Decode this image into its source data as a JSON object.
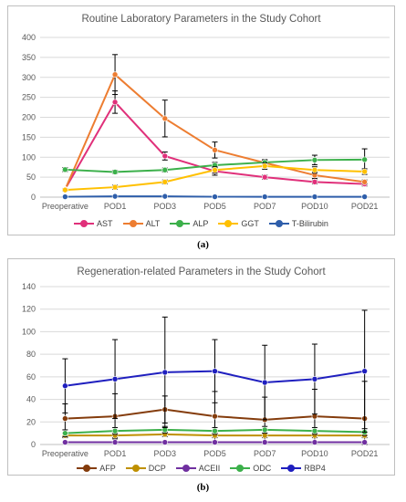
{
  "figure_a": {
    "caption": "(a)",
    "chart_data": {
      "type": "line",
      "title": "Routine Laboratory Parameters in the Study Cohort",
      "categories": [
        "Preoperative",
        "POD1",
        "POD3",
        "POD5",
        "POD7",
        "POD10",
        "POD21"
      ],
      "ylim": [
        0,
        400
      ],
      "yticks": [
        0,
        50,
        100,
        150,
        200,
        250,
        300,
        350,
        400
      ],
      "grid": true,
      "legend_position": "bottom",
      "series": [
        {
          "name": "AST",
          "color": "#e0307a",
          "values": [
            20,
            238,
            103,
            65,
            50,
            38,
            33
          ],
          "error": [
            0,
            28,
            10,
            10,
            5,
            5,
            5
          ]
        },
        {
          "name": "ALT",
          "color": "#ed7d31",
          "values": [
            19,
            307,
            197,
            118,
            86,
            55,
            38
          ],
          "error": [
            0,
            50,
            46,
            20,
            8,
            8,
            5
          ]
        },
        {
          "name": "ALP",
          "color": "#3cb04b",
          "values": [
            69,
            63,
            68,
            80,
            87,
            93,
            94
          ],
          "error": [
            5,
            4,
            5,
            7,
            5,
            12,
            27
          ]
        },
        {
          "name": "GGT",
          "color": "#ffc000",
          "values": [
            18,
            25,
            38,
            68,
            78,
            68,
            64
          ],
          "error": [
            3,
            5,
            5,
            8,
            8,
            8,
            7
          ]
        },
        {
          "name": "T-Bilirubin",
          "color": "#2e5eaa",
          "values": [
            1,
            2,
            2,
            1,
            1,
            1,
            1
          ],
          "error": [
            0,
            0,
            0,
            0,
            0,
            0,
            0
          ]
        }
      ]
    }
  },
  "figure_b": {
    "caption": "(b)",
    "chart_data": {
      "type": "line",
      "title": "Regeneration-related Parameters in the Study Cohort",
      "categories": [
        "Preoperative",
        "POD1",
        "POD3",
        "POD5",
        "POD7",
        "POD10",
        "POD21"
      ],
      "ylim": [
        0,
        140
      ],
      "yticks": [
        0,
        20,
        40,
        60,
        80,
        100,
        120,
        140
      ],
      "grid": true,
      "legend_position": "bottom",
      "series": [
        {
          "name": "AFP",
          "color": "#843c0c",
          "values": [
            23,
            25,
            31,
            25,
            22,
            25,
            23
          ],
          "error": [
            13,
            20,
            12,
            22,
            20,
            24,
            33
          ]
        },
        {
          "name": "DCP",
          "color": "#bf9000",
          "values": [
            8,
            8,
            9,
            8,
            8,
            8,
            8
          ],
          "error": [
            2,
            2,
            2,
            2,
            2,
            2,
            2
          ]
        },
        {
          "name": "ACEII",
          "color": "#7030a0",
          "values": [
            2,
            2,
            2,
            2,
            2,
            2,
            2
          ],
          "error": [
            0,
            0,
            0,
            0,
            0,
            0,
            0
          ]
        },
        {
          "name": "ODC",
          "color": "#3cb04b",
          "values": [
            10,
            12,
            13,
            12,
            13,
            12,
            11
          ],
          "error": [
            3,
            3,
            3,
            3,
            3,
            3,
            3
          ]
        },
        {
          "name": "RBP4",
          "color": "#1f1fbf",
          "values": [
            52,
            58,
            64,
            65,
            55,
            58,
            65
          ],
          "error": [
            24,
            35,
            49,
            28,
            33,
            31,
            54
          ]
        }
      ]
    }
  }
}
